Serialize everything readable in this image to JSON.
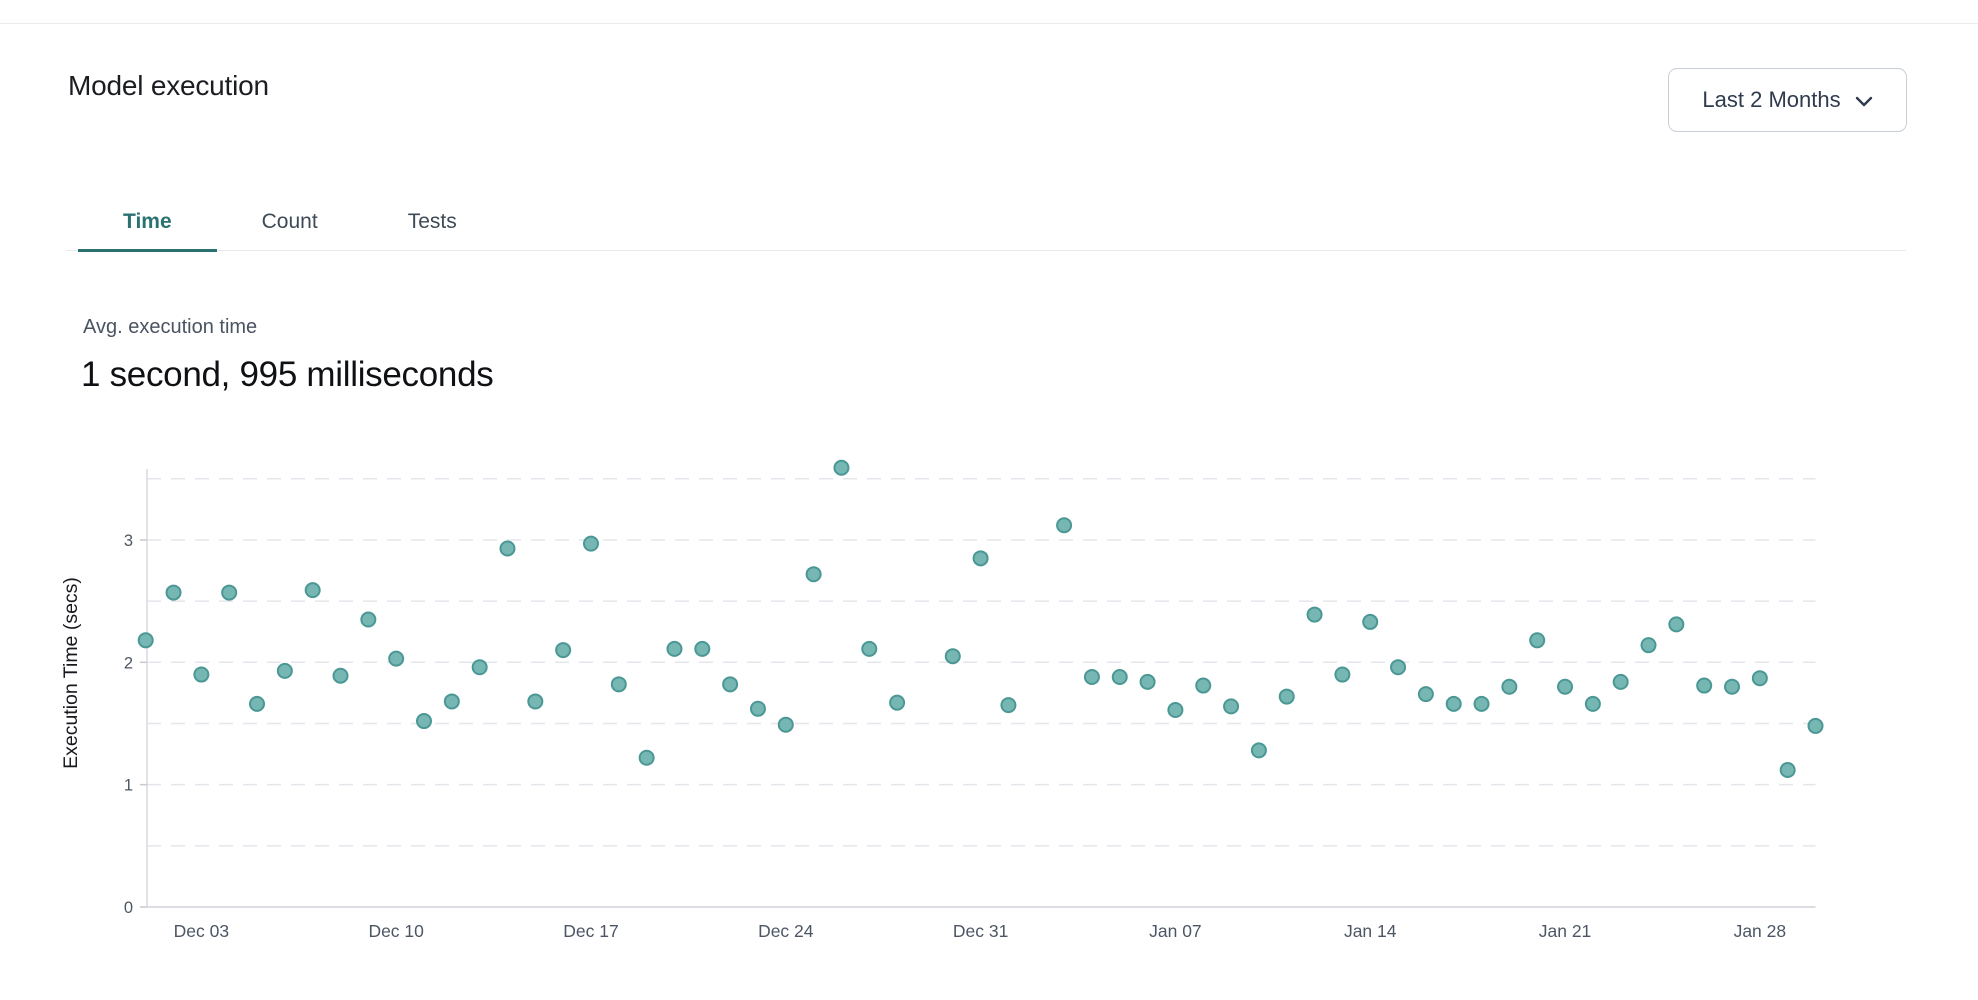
{
  "page": {
    "title": "Model execution"
  },
  "controls": {
    "date_range": {
      "label": "Last 2 Months",
      "icon": "chevron-down-icon"
    }
  },
  "tabs": [
    {
      "label": "Time",
      "active": true
    },
    {
      "label": "Count",
      "active": false
    },
    {
      "label": "Tests",
      "active": false
    }
  ],
  "stats": {
    "label": "Avg. execution time",
    "value": "1 second, 995 milliseconds"
  },
  "colors": {
    "accent_teal": "#2a7171",
    "dot_fill": "#76b7b4",
    "dot_stroke": "#4b9794",
    "grid": "#e5e5ec",
    "axis": "#dcdce3",
    "tick_text": "#4d5664",
    "axis_title_text": "#17191e"
  },
  "chart_data": {
    "type": "scatter",
    "title": "",
    "xlabel": "",
    "ylabel": "Execution Time (secs)",
    "ylim": [
      0,
      3.58
    ],
    "y_ticks": [
      0,
      1,
      2,
      3
    ],
    "grid_step": 0.5,
    "grid_on": true,
    "legend": "none",
    "x_domain_days": 60,
    "x_tick_days": [
      2,
      9,
      16,
      23,
      30,
      37,
      44,
      51,
      58
    ],
    "x_tick_labels": [
      "Dec 03",
      "Dec 10",
      "Dec 17",
      "Dec 24",
      "Dec 31",
      "Jan 07",
      "Jan 14",
      "Jan 21",
      "Jan 28"
    ],
    "points": [
      {
        "d": 0,
        "date": "Dec 01",
        "secs": 2.18
      },
      {
        "d": 1,
        "date": "Dec 02",
        "secs": 2.57
      },
      {
        "d": 2,
        "date": "Dec 03",
        "secs": 1.9
      },
      {
        "d": 3,
        "date": "Dec 04",
        "secs": 2.57
      },
      {
        "d": 4,
        "date": "Dec 05",
        "secs": 1.66
      },
      {
        "d": 5,
        "date": "Dec 06",
        "secs": 1.93
      },
      {
        "d": 6,
        "date": "Dec 07",
        "secs": 2.59
      },
      {
        "d": 7,
        "date": "Dec 08",
        "secs": 1.89
      },
      {
        "d": 8,
        "date": "Dec 09",
        "secs": 2.35
      },
      {
        "d": 9,
        "date": "Dec 10",
        "secs": 2.03
      },
      {
        "d": 10,
        "date": "Dec 11",
        "secs": 1.52
      },
      {
        "d": 11,
        "date": "Dec 12",
        "secs": 1.68
      },
      {
        "d": 12,
        "date": "Dec 13",
        "secs": 1.96
      },
      {
        "d": 13,
        "date": "Dec 14",
        "secs": 2.93
      },
      {
        "d": 14,
        "date": "Dec 15",
        "secs": 1.68
      },
      {
        "d": 15,
        "date": "Dec 16",
        "secs": 2.1
      },
      {
        "d": 16,
        "date": "Dec 17",
        "secs": 2.97
      },
      {
        "d": 17,
        "date": "Dec 18",
        "secs": 1.82
      },
      {
        "d": 18,
        "date": "Dec 19",
        "secs": 1.22
      },
      {
        "d": 19,
        "date": "Dec 20",
        "secs": 2.11
      },
      {
        "d": 20,
        "date": "Dec 21",
        "secs": 2.11
      },
      {
        "d": 21,
        "date": "Dec 22",
        "secs": 1.82
      },
      {
        "d": 22,
        "date": "Dec 23",
        "secs": 1.62
      },
      {
        "d": 23,
        "date": "Dec 24",
        "secs": 1.49
      },
      {
        "d": 24,
        "date": "Dec 25",
        "secs": 2.72
      },
      {
        "d": 25,
        "date": "Dec 26",
        "secs": 3.59
      },
      {
        "d": 26,
        "date": "Dec 27",
        "secs": 2.11
      },
      {
        "d": 27,
        "date": "Dec 28",
        "secs": 1.67
      },
      {
        "d": 29,
        "date": "Dec 30",
        "secs": 2.05
      },
      {
        "d": 30,
        "date": "Dec 31",
        "secs": 2.85
      },
      {
        "d": 31,
        "date": "Jan 01",
        "secs": 1.65
      },
      {
        "d": 33,
        "date": "Jan 03",
        "secs": 3.12
      },
      {
        "d": 34,
        "date": "Jan 04",
        "secs": 1.88
      },
      {
        "d": 35,
        "date": "Jan 05",
        "secs": 1.88
      },
      {
        "d": 36,
        "date": "Jan 06",
        "secs": 1.84
      },
      {
        "d": 37,
        "date": "Jan 07",
        "secs": 1.61
      },
      {
        "d": 38,
        "date": "Jan 08",
        "secs": 1.81
      },
      {
        "d": 39,
        "date": "Jan 09",
        "secs": 1.64
      },
      {
        "d": 40,
        "date": "Jan 10",
        "secs": 1.28
      },
      {
        "d": 41,
        "date": "Jan 11",
        "secs": 1.72
      },
      {
        "d": 42,
        "date": "Jan 12",
        "secs": 2.39
      },
      {
        "d": 43,
        "date": "Jan 13",
        "secs": 1.9
      },
      {
        "d": 44,
        "date": "Jan 14",
        "secs": 2.33
      },
      {
        "d": 45,
        "date": "Jan 15",
        "secs": 1.96
      },
      {
        "d": 46,
        "date": "Jan 16",
        "secs": 1.74
      },
      {
        "d": 47,
        "date": "Jan 17",
        "secs": 1.66
      },
      {
        "d": 48,
        "date": "Jan 18",
        "secs": 1.66
      },
      {
        "d": 49,
        "date": "Jan 19",
        "secs": 1.8
      },
      {
        "d": 50,
        "date": "Jan 20",
        "secs": 2.18
      },
      {
        "d": 51,
        "date": "Jan 21",
        "secs": 1.8
      },
      {
        "d": 52,
        "date": "Jan 22",
        "secs": 1.66
      },
      {
        "d": 53,
        "date": "Jan 23",
        "secs": 1.84
      },
      {
        "d": 54,
        "date": "Jan 24",
        "secs": 2.14
      },
      {
        "d": 55,
        "date": "Jan 25",
        "secs": 2.31
      },
      {
        "d": 56,
        "date": "Jan 26",
        "secs": 1.81
      },
      {
        "d": 57,
        "date": "Jan 27",
        "secs": 1.8
      },
      {
        "d": 58,
        "date": "Jan 28",
        "secs": 1.87
      },
      {
        "d": 59,
        "date": "Jan 29",
        "secs": 1.12
      },
      {
        "d": 60,
        "date": "Jan 30",
        "secs": 1.48
      }
    ]
  }
}
